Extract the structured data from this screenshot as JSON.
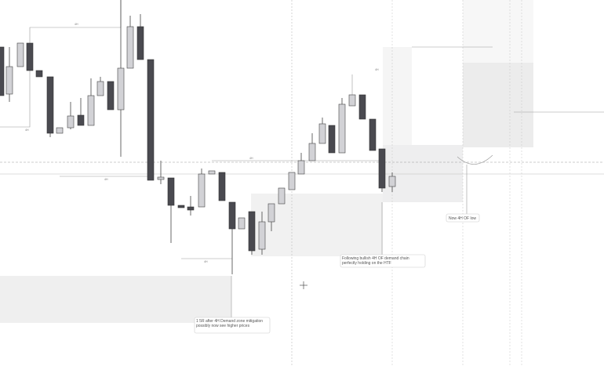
{
  "annotations": [
    {
      "text": "1 5R after 4H Demand zone mitigation possibly now see higher prices"
    },
    {
      "text": "Following bullish 4H OF demand chain perfectly holding on the HTF"
    },
    {
      "text": "Now 4H OF low"
    }
  ],
  "labels": [
    "4H",
    "4H",
    "4H",
    "4H",
    "4H",
    "4H"
  ]
}
